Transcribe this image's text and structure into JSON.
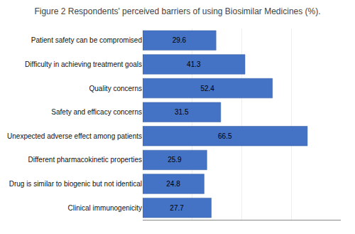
{
  "chart_data": {
    "type": "bar",
    "orientation": "horizontal",
    "title": "Figure 2 Respondents' perceived barriers of using Biosimilar Medicines (%).",
    "categories": [
      "Patient safety can be compromised",
      "Difficulty in achieving treatment goals",
      "Quality concerns",
      "Safety and efficacy concerns",
      "Unexpected adverse effect among patients",
      "Different pharmacokinetic properties",
      "Drug is similar to biogenic but not identical",
      "Clinical immunogenicity"
    ],
    "values": [
      29.6,
      41.3,
      52.4,
      31.5,
      66.5,
      25.9,
      24.8,
      27.7
    ],
    "color": "#4472C4",
    "xlim": [
      0,
      80
    ],
    "xticks": [
      0,
      20,
      40,
      60,
      80
    ],
    "grid": true,
    "data_labels": true,
    "tick_labels": "y"
  }
}
